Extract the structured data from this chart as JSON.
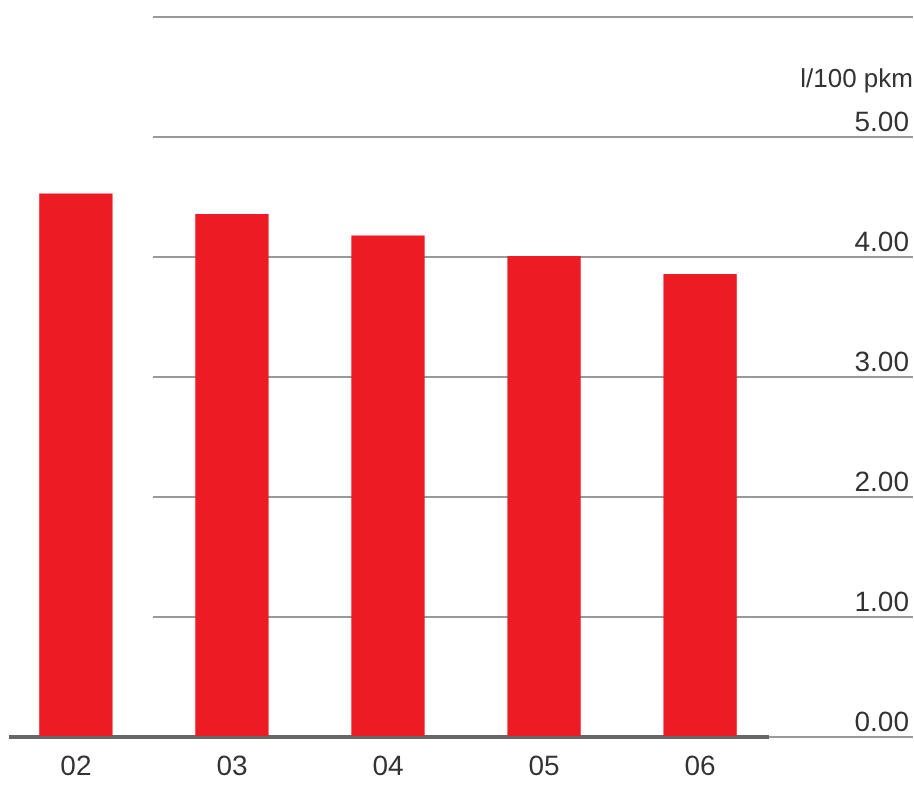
{
  "chart_data": {
    "type": "bar",
    "ylabel": "l/100 pkm",
    "categories": [
      "02",
      "03",
      "04",
      "05",
      "06"
    ],
    "values": [
      4.52,
      4.35,
      4.17,
      4.0,
      3.85
    ],
    "color": "#ed1c24",
    "ylim": [
      0,
      6
    ],
    "yticks": [
      {
        "value": 0,
        "label": "0.00"
      },
      {
        "value": 1,
        "label": "1.00"
      },
      {
        "value": 2,
        "label": "2.00"
      },
      {
        "value": 3,
        "label": "3.00"
      },
      {
        "value": 4,
        "label": "4.00"
      },
      {
        "value": 5,
        "label": "5.00"
      },
      {
        "value": 6,
        "label": null
      }
    ],
    "grid": true
  }
}
